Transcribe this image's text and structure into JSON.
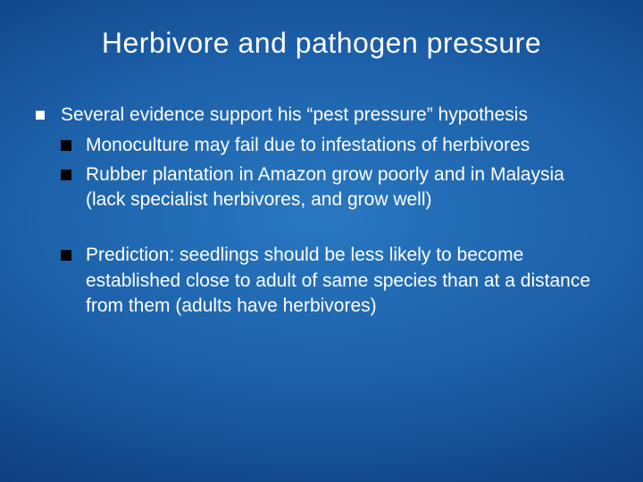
{
  "slide": {
    "title": "Herbivore and pathogen pressure",
    "background": {
      "gradient_center": "#2878c0",
      "gradient_mid": "#1c5fa8",
      "gradient_outer": "#0d3a78",
      "gradient_edge": "#062050"
    },
    "title_fontsize": 32,
    "body_fontsize": 21,
    "text_color": "#ffffff",
    "bullet_level1_color": "#ffffff",
    "bullet_level2_color": "#000000",
    "bullets": {
      "main": "Several evidence support his “pest pressure” hypothesis",
      "sub1": "Monoculture may fail due to infestations of herbivores",
      "sub2": "Rubber plantation in Amazon grow poorly and in Malaysia (lack specialist herbivores, and grow well)",
      "sub3": "Prediction: seedlings should be less likely to become established close to adult of same species than at a distance from them (adults have herbivores)"
    }
  }
}
